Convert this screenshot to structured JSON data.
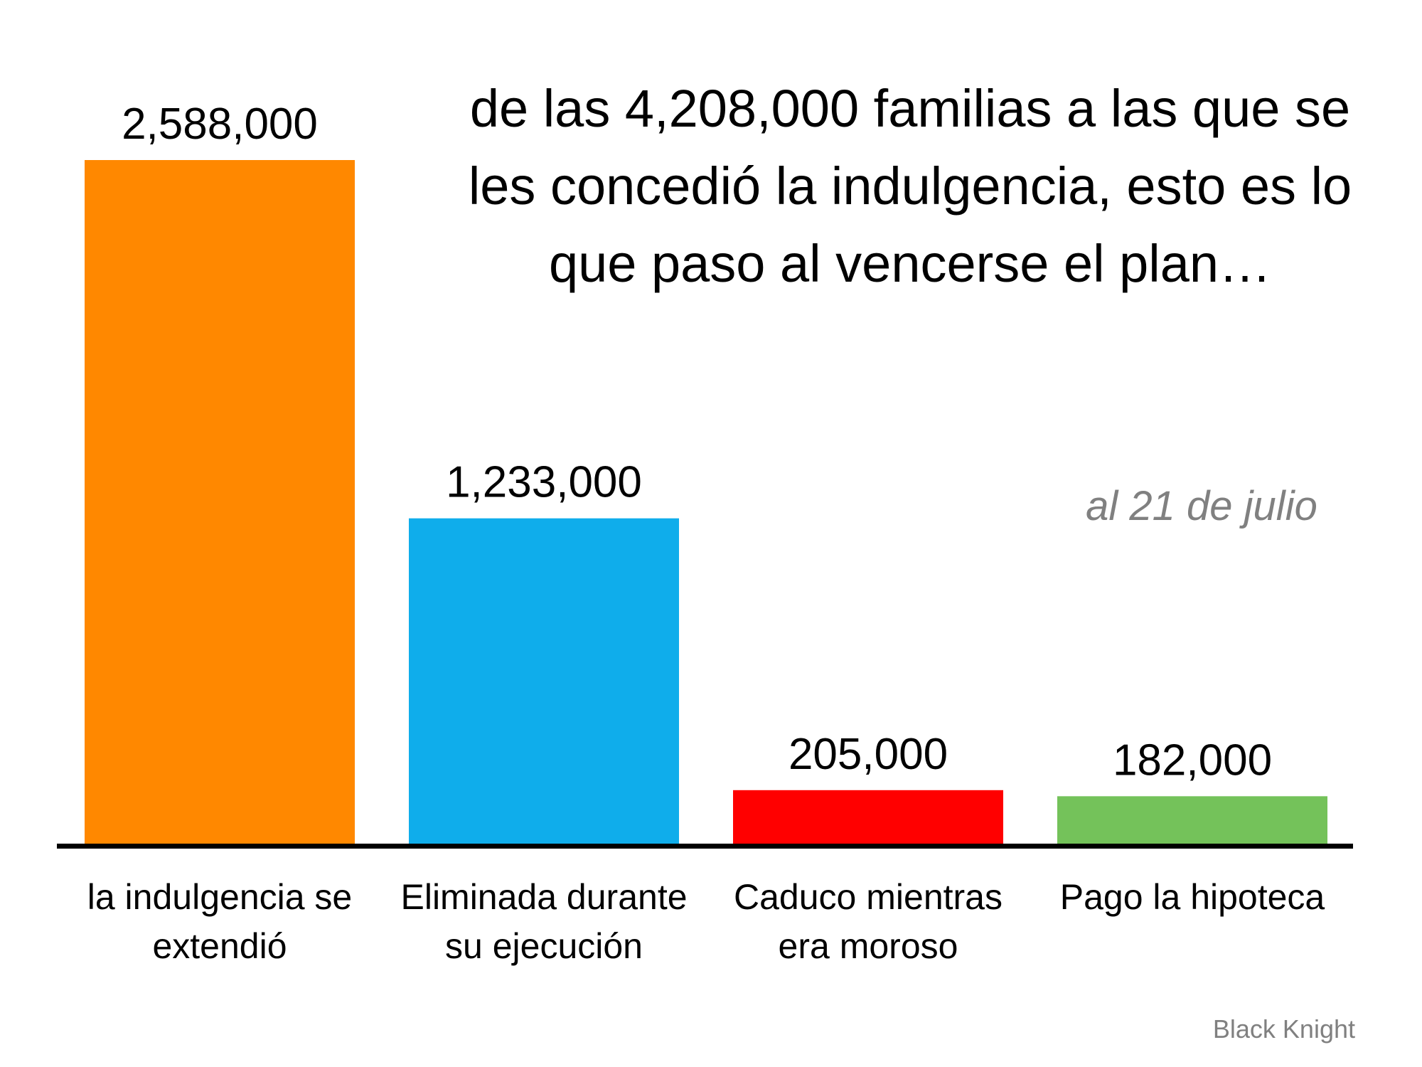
{
  "chart_data": {
    "type": "bar",
    "title": "de las 4,208,000 familias a las que se les concedió la indulgencia, esto es lo que paso al vencerse el plan…",
    "subtitle": "al 21 de julio",
    "source": "Black Knight",
    "categories": [
      [
        "la indulgencia se",
        "extendió"
      ],
      [
        "Eliminada durante",
        "su ejecución"
      ],
      [
        "Caduco mientras",
        "era moroso"
      ],
      [
        "Pago la hipoteca"
      ]
    ],
    "values": [
      2588000,
      1233000,
      205000,
      182000
    ],
    "data_labels": [
      "2,588,000",
      "1,233,000",
      "205,000",
      "182,000"
    ],
    "colors": [
      "#FF8800",
      "#0FADEB",
      "#FF0000",
      "#74C25A"
    ],
    "ylim": [
      0,
      2588000
    ],
    "grid": false,
    "legend": "none"
  }
}
